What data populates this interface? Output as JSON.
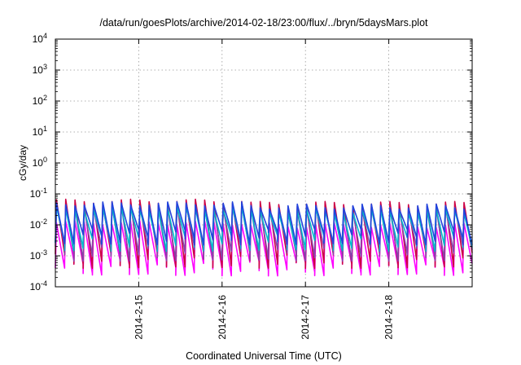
{
  "chart_data": {
    "type": "line",
    "title": "/data/run/goesPlots/archive/2014-02-18/23:00/flux/../bryn/5daysMars.plot",
    "xlabel": "Coordinated Universal Time (UTC)",
    "ylabel": "cGy/day",
    "y_scale": "log",
    "ylim": [
      0.0001,
      10000
    ],
    "xlim": [
      "2014-02-14",
      "2014-02-19"
    ],
    "grid": true,
    "legend": "none",
    "y_ticks": [
      {
        "base": "10",
        "exp": "-4"
      },
      {
        "base": "10",
        "exp": "-3"
      },
      {
        "base": "10",
        "exp": "-2"
      },
      {
        "base": "10",
        "exp": "-1"
      },
      {
        "base": "10",
        "exp": "0"
      },
      {
        "base": "10",
        "exp": "1"
      },
      {
        "base": "10",
        "exp": "2"
      },
      {
        "base": "10",
        "exp": "3"
      },
      {
        "base": "10",
        "exp": "4"
      }
    ],
    "x_ticks": [
      "2014-2-15",
      "2014-2-16",
      "2014-2-17",
      "2014-2-18"
    ],
    "cycles_per_day": 9,
    "series": [
      {
        "color": "#ff00ff",
        "peak": 0.012,
        "trough": 0.0004
      },
      {
        "color": "#cc0044",
        "peak": 0.06,
        "trough": 0.0007
      },
      {
        "color": "#8844aa",
        "peak": 0.04,
        "trough": 0.0012
      },
      {
        "color": "#00bbcc",
        "peak": 0.035,
        "trough": 0.0025
      },
      {
        "color": "#2244dd",
        "peak": 0.05,
        "trough": 0.004
      }
    ]
  }
}
